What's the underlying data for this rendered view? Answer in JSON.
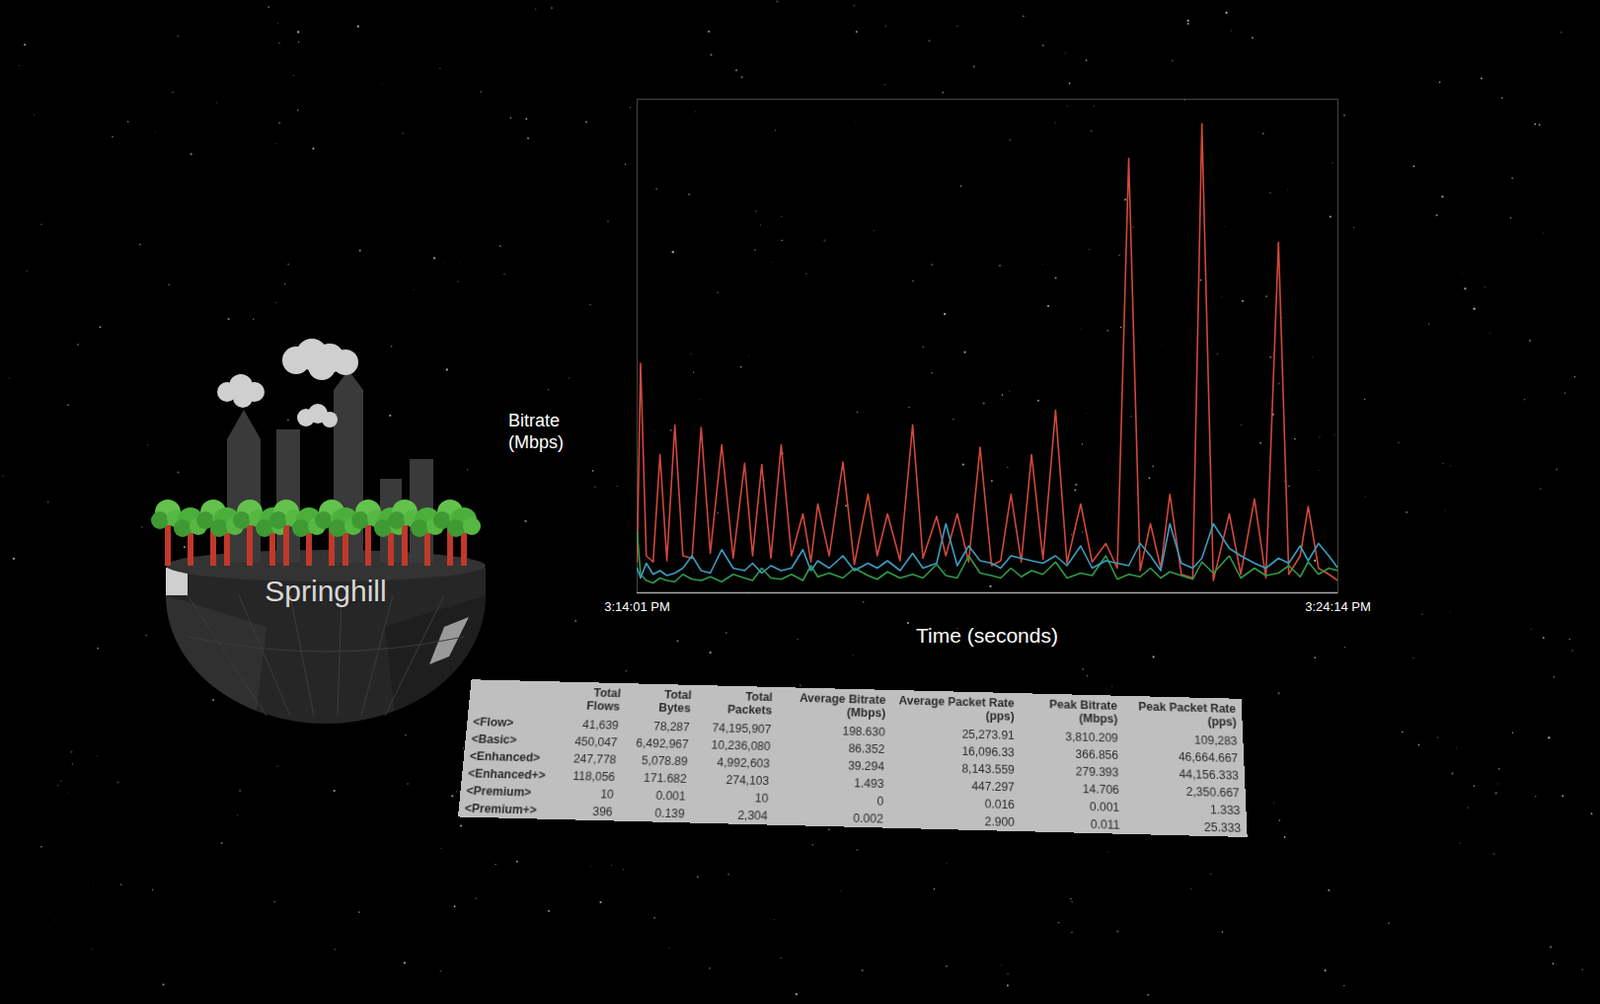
{
  "chart_data": {
    "type": "line",
    "xlabel": "Time (seconds)",
    "ylabel": "Bitrate (Mbps)",
    "x": [
      0,
      3,
      8,
      14,
      20,
      26,
      33,
      40,
      48,
      56,
      64,
      74,
      84,
      94,
      101,
      109,
      117,
      126,
      135,
      145,
      152,
      158,
      168,
      180,
      190,
      202,
      210,
      219,
      230,
      241,
      250,
      262,
      270,
      280,
      290,
      300,
      310,
      318,
      327,
      336,
      345,
      355,
      366,
      376,
      388,
      398,
      410,
      420,
      430,
      440,
      449,
      458,
      466,
      476,
      486,
      494,
      504,
      518,
      528,
      540,
      550,
      561,
      570,
      580,
      587,
      596,
      605,
      613
    ],
    "series": [
      {
        "color": "#d0483a",
        "values": [
          250,
          1860,
          300,
          250,
          1120,
          260,
          1360,
          300,
          280,
          1340,
          320,
          1200,
          280,
          1050,
          300,
          1040,
          280,
          1200,
          300,
          640,
          250,
          720,
          300,
          1060,
          230,
          800,
          300,
          640,
          260,
          1360,
          280,
          620,
          300,
          640,
          250,
          1180,
          220,
          260,
          800,
          250,
          1120,
          270,
          1480,
          240,
          720,
          250,
          400,
          200,
          3520,
          180,
          560,
          200,
          800,
          150,
          120,
          3800,
          100,
          640,
          150,
          760,
          120,
          2840,
          150,
          300,
          700,
          200,
          150,
          100
        ]
      },
      {
        "color": "#2f9a4a",
        "values": [
          500,
          150,
          100,
          80,
          120,
          100,
          90,
          150,
          110,
          100,
          130,
          90,
          150,
          120,
          100,
          200,
          120,
          110,
          150,
          100,
          220,
          130,
          160,
          120,
          200,
          140,
          110,
          170,
          120,
          150,
          120,
          230,
          140,
          120,
          300,
          160,
          140,
          120,
          200,
          130,
          180,
          150,
          250,
          120,
          160,
          140,
          300,
          110,
          150,
          130,
          200,
          120,
          170,
          140,
          110,
          250,
          160,
          300,
          120,
          200,
          140,
          160,
          220,
          130,
          250,
          150,
          200,
          180
        ]
      },
      {
        "color": "#3b9cc0",
        "values": [
          200,
          120,
          240,
          150,
          180,
          140,
          160,
          200,
          300,
          180,
          160,
          350,
          200,
          180,
          240,
          160,
          220,
          180,
          200,
          350,
          180,
          260,
          200,
          300,
          180,
          240,
          200,
          260,
          180,
          320,
          200,
          240,
          560,
          220,
          380,
          260,
          240,
          200,
          300,
          280,
          260,
          240,
          300,
          220,
          380,
          200,
          260,
          240,
          220,
          400,
          300,
          180,
          560,
          240,
          200,
          280,
          560,
          360,
          300,
          240,
          200,
          280,
          240,
          380,
          260,
          400,
          300,
          200
        ]
      }
    ],
    "xlim": [
      0,
      613
    ],
    "xticks": [
      {
        "value": 0,
        "label": "3:14:01 PM"
      },
      {
        "value": 613,
        "label": "3:24:14 PM"
      }
    ],
    "ylim": [
      0,
      4000
    ],
    "yticks": [],
    "tick_labels": "x",
    "grid": false
  },
  "globe": {
    "label": "Springhill"
  },
  "table": {
    "columns": [
      "Total Flows",
      "Total Bytes",
      "Total Packets",
      "Average Bitrate (Mbps)",
      "Average Packet Rate (pps)",
      "Peak Bitrate (Mbps)",
      "Peak Packet Rate (pps)"
    ],
    "rows": [
      {
        "label": "<Flow>",
        "cells": [
          "41,639",
          "78,287",
          "74,195,907",
          "198.630",
          "25,273.91",
          "3,810.209",
          "109,283"
        ]
      },
      {
        "label": "<Basic>",
        "cells": [
          "450,047",
          "6,492,967",
          "10,236,080",
          "86.352",
          "16,096.33",
          "366.856",
          "46,664.667"
        ]
      },
      {
        "label": "<Enhanced>",
        "cells": [
          "247,778",
          "5,078.89",
          "4,992,603",
          "39.294",
          "8,143.559",
          "279.393",
          "44,156.333"
        ]
      },
      {
        "label": "<Enhanced+>",
        "cells": [
          "118,056",
          "171.682",
          "274,103",
          "1.493",
          "447.297",
          "14.706",
          "2,350.667"
        ]
      },
      {
        "label": "<Premium>",
        "cells": [
          "10",
          "0.001",
          "10",
          "0",
          "0.016",
          "0.001",
          "1.333"
        ]
      },
      {
        "label": "<Premium+>",
        "cells": [
          "396",
          "0.139",
          "2,304",
          "0.002",
          "2.900",
          "0.011",
          "25.333"
        ]
      }
    ]
  }
}
